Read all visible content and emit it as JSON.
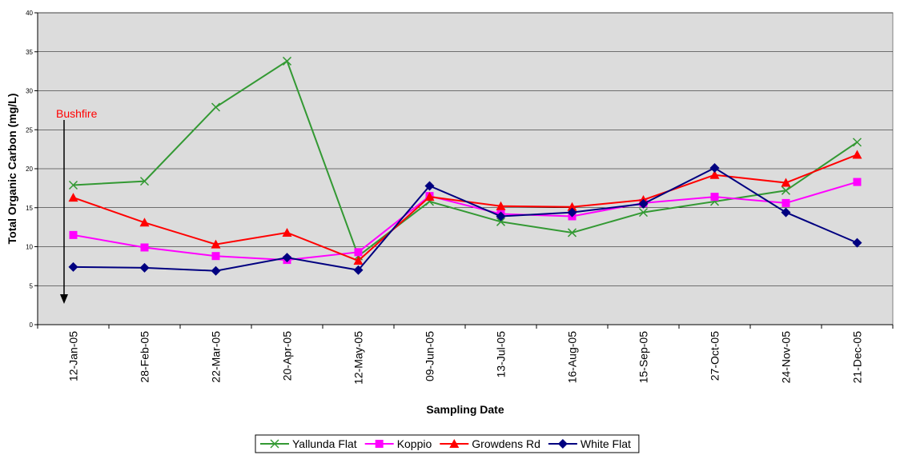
{
  "chart_data": {
    "type": "line",
    "x_label": "Sampling Date",
    "y_label": "Total Organic Carbon (mg/L)",
    "annotation": "Bushfire",
    "categories": [
      "12-Jan-05",
      "28-Feb-05",
      "22-Mar-05",
      "20-Apr-05",
      "12-May-05",
      "09-Jun-05",
      "13-Jul-05",
      "16-Aug-05",
      "15-Sep-05",
      "27-Oct-05",
      "24-Nov-05",
      "21-Dec-05"
    ],
    "series": [
      {
        "name": "Yallunda Flat",
        "color": "#339933",
        "marker": "x",
        "values": [
          17.9,
          18.4,
          27.9,
          33.8,
          8.8,
          15.8,
          13.2,
          11.8,
          14.4,
          15.8,
          17.2,
          23.4
        ]
      },
      {
        "name": "Koppio",
        "color": "#ff00ff",
        "marker": "square",
        "values": [
          11.5,
          9.9,
          8.8,
          8.3,
          9.3,
          16.5,
          14.2,
          13.9,
          15.6,
          16.4,
          15.6,
          18.3
        ]
      },
      {
        "name": "Growdens Rd",
        "color": "#ff0000",
        "marker": "triangle",
        "values": [
          16.3,
          13.1,
          10.3,
          11.8,
          8.2,
          16.4,
          15.2,
          15.1,
          16.0,
          19.2,
          18.2,
          21.8
        ]
      },
      {
        "name": "White Flat",
        "color": "#000080",
        "marker": "diamond",
        "values": [
          7.4,
          7.3,
          6.9,
          8.6,
          7.0,
          17.8,
          13.9,
          14.4,
          15.5,
          20.1,
          14.4,
          10.5
        ]
      }
    ],
    "ylim": [
      0,
      40
    ],
    "yticks": [
      0,
      5,
      10,
      15,
      20,
      25,
      30,
      35,
      40
    ],
    "grid": true
  }
}
